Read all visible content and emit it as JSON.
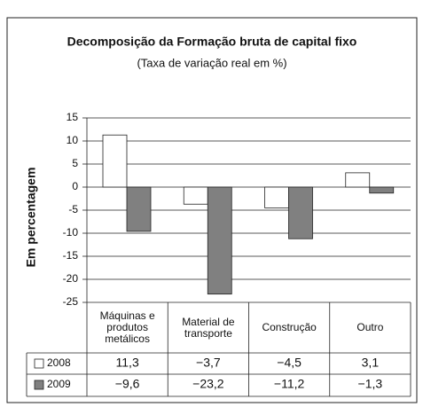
{
  "chart_data": {
    "type": "bar",
    "title": "Decomposição da Formação bruta de capital fixo",
    "subtitle": "(Taxa de variação real em %)",
    "ylabel": "Em percentagem",
    "categories": [
      "Máquinas e produtos metálicos",
      "Material de transporte",
      "Construção",
      "Outro"
    ],
    "series": [
      {
        "name": "2008",
        "color": "#ffffff",
        "values": [
          11.3,
          -3.7,
          -4.5,
          3.1
        ],
        "value_labels": [
          "11,3",
          "−3,7",
          "−4,5",
          "3,1"
        ]
      },
      {
        "name": "2009",
        "color": "#808080",
        "values": [
          -9.6,
          -23.2,
          -11.2,
          -1.3
        ],
        "value_labels": [
          "−9,6",
          "−23,2",
          "−11,2",
          "−1,3"
        ]
      }
    ],
    "ylim": [
      -25,
      15
    ],
    "yticks": [
      15,
      10,
      5,
      0,
      -5,
      -10,
      -15,
      -20,
      -25
    ],
    "grid": true
  }
}
